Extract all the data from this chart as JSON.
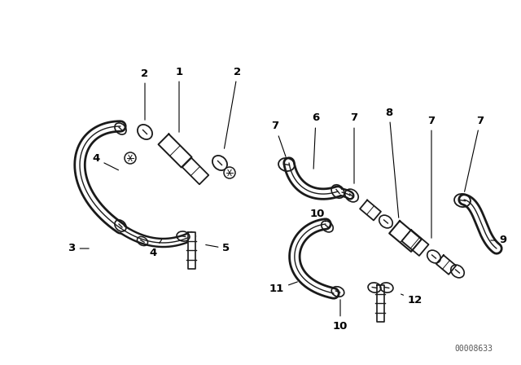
{
  "bg_color": "#ffffff",
  "line_color": "#1a1a1a",
  "label_color": "#000000",
  "watermark": "00008633",
  "fig_w": 6.4,
  "fig_h": 4.48,
  "dpi": 100
}
